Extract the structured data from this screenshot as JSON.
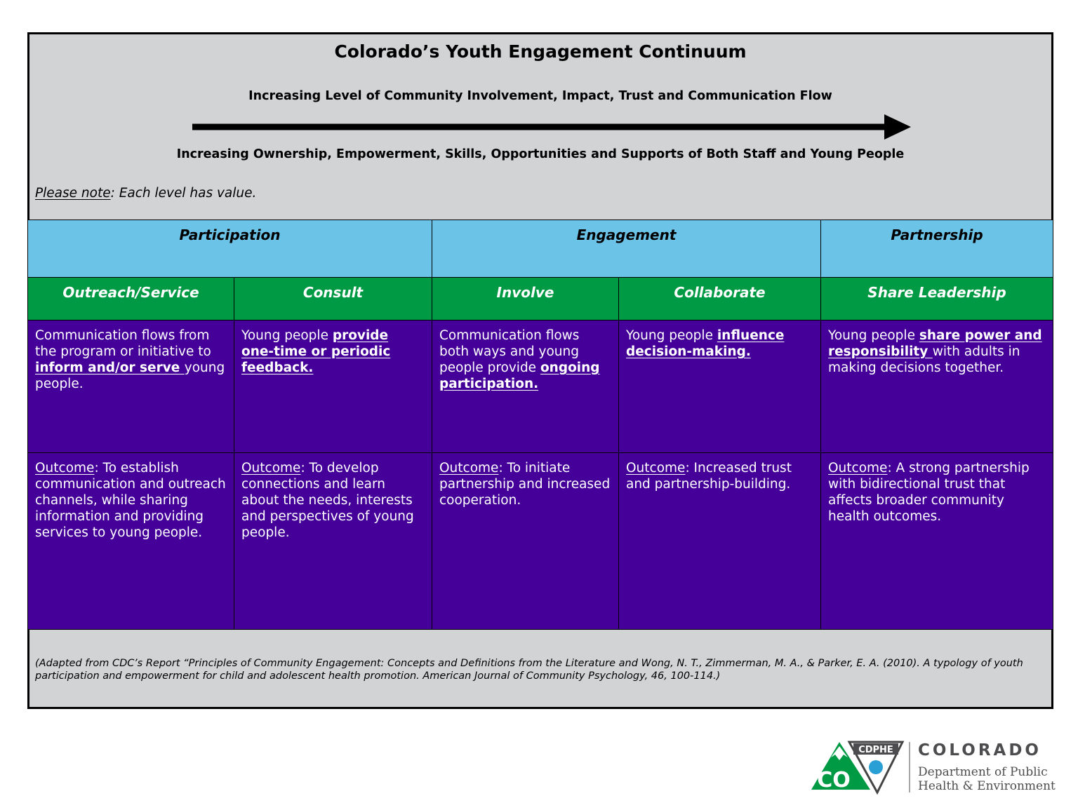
{
  "header": {
    "title": "Colorado’s Youth Engagement Continuum",
    "line1": "Increasing Level of Community Involvement, Impact, Trust and Communication Flow",
    "line2": "Increasing Ownership, Empowerment, Skills, Opportunities and Supports of Both Staff and Young People",
    "note_label": "Please note",
    "note_text": ": Each level has value."
  },
  "groups": [
    "Participation",
    "Engagement",
    "Partnership"
  ],
  "levels": [
    {
      "name": "Outreach/Service",
      "description": {
        "before": "Communication flows from the program or initiative to ",
        "emphasis": "inform and/or serve ",
        "after": "young people."
      },
      "outcome": {
        "label": "Outcome",
        "text": ": To establish communication and outreach channels, while sharing information and providing services to young people."
      }
    },
    {
      "name": "Consult",
      "description": {
        "before": "Young people ",
        "emphasis": "provide one-time or periodic feedback."
      },
      "outcome": {
        "label": "Outcome",
        "text": ": To develop connections and learn about the needs, interests and perspectives of young people."
      }
    },
    {
      "name": "Involve",
      "description": {
        "before": "Communication flows both ways and young people provide ",
        "emphasis": "ongoing participation."
      },
      "outcome": {
        "label": "Outcome",
        "text": ": To initiate partnership and increased cooperation."
      }
    },
    {
      "name": "Collaborate",
      "description": {
        "before": "Young people ",
        "emphasis": "influence decision-making."
      },
      "outcome": {
        "label": "Outcome",
        "text": ": Increased trust and partnership-building."
      }
    },
    {
      "name": "Share Leadership",
      "description": {
        "before": "Young people ",
        "emphasis": "share power and responsibility ",
        "after": "with adults in making decisions together."
      },
      "outcome": {
        "label": "Outcome",
        "text": ": A strong partnership with bidirectional trust that affects broader community health outcomes."
      }
    }
  ],
  "footer": {
    "citation": "(Adapted from CDC’s Report “Principles of Community Engagement: Concepts and Definitions from the Literature and Wong, N. T., Zimmerman, M. A., & Parker, E. A. (2010). A typology of youth participation and empowerment for child and adolescent health promotion. American Journal of Community Psychology, 46, 100-114.)"
  },
  "logo": {
    "badge": "CDPHE",
    "mark": "CO",
    "state": "COLORADO",
    "line1": "Department of Public",
    "line2": "Health & Environment"
  }
}
